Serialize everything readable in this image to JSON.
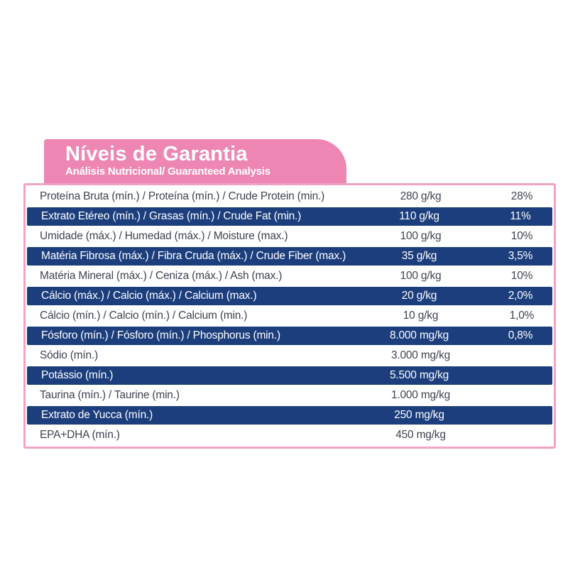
{
  "colors": {
    "header_pink": "#ee86b3",
    "border_pink": "#f2a3c5",
    "navy": "#1c3e7d",
    "row_text": "#3d4350"
  },
  "header": {
    "title": "Níveis de Garantia",
    "subtitle": "Análisis Nutricional/ Guaranteed Analysis"
  },
  "table": {
    "rows": [
      {
        "label": "Proteína Bruta (mín.) / Proteína (mín.) / Crude Protein (min.)",
        "value": "280 g/kg",
        "percent": "28%"
      },
      {
        "label": "Extrato Etéreo (mín.) / Grasas (mín.) / Crude Fat (min.)",
        "value": "110 g/kg",
        "percent": "11%"
      },
      {
        "label": "Umidade (máx.) / Humedad (máx.) / Moisture (max.)",
        "value": "100 g/kg",
        "percent": "10%"
      },
      {
        "label": "Matéria Fibrosa (máx.) / Fibra Cruda (máx.) / Crude Fiber (max.)",
        "value": "35 g/kg",
        "percent": "3,5%"
      },
      {
        "label": "Matéria Mineral (máx.) / Ceniza (máx.) / Ash (max.)",
        "value": "100 g/kg",
        "percent": "10%"
      },
      {
        "label": "Cálcio (máx.) / Calcio (máx.) / Calcium (max.)",
        "value": "20 g/kg",
        "percent": "2,0%"
      },
      {
        "label": "Cálcio (mín.) / Calcio (mín.) / Calcium (min.)",
        "value": "10 g/kg",
        "percent": "1,0%"
      },
      {
        "label": "Fósforo (mín.) / Fósforo (mín.) / Phosphorus (min.)",
        "value": "8.000 mg/kg",
        "percent": "0,8%"
      },
      {
        "label": "Sódio (mín.)",
        "value": "3.000 mg/kg",
        "percent": ""
      },
      {
        "label": "Potássio (mín.)",
        "value": "5.500 mg/kg",
        "percent": ""
      },
      {
        "label": "Taurina (mín.) / Taurine (min.)",
        "value": "1.000 mg/kg",
        "percent": ""
      },
      {
        "label": "Extrato de Yucca (mín.)",
        "value": "250 mg/kg",
        "percent": ""
      },
      {
        "label": "EPA+DHA (mín.)",
        "value": "450 mg/kg",
        "percent": ""
      }
    ]
  }
}
